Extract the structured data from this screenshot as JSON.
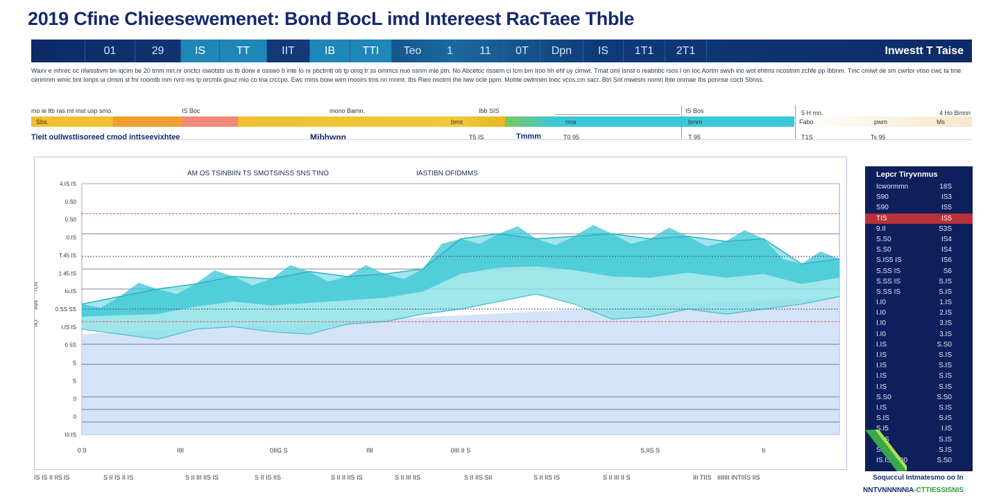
{
  "title": "2019 Cfine Chieesewemenet: Bond BocL imd Intereest RacTaee Thble",
  "header_cells": [
    {
      "label": "",
      "bright": false
    },
    {
      "label": "01",
      "bright": false
    },
    {
      "label": "29",
      "bright": false
    },
    {
      "label": "IS",
      "bright": true
    },
    {
      "label": "TT",
      "bright": true
    },
    {
      "label": "IIT",
      "bright": false
    },
    {
      "label": "IB",
      "bright": true
    },
    {
      "label": "TTI",
      "bright": true
    },
    {
      "label": "Teo",
      "bright": false
    },
    {
      "label": "1",
      "bright": false
    },
    {
      "label": "11",
      "bright": false
    },
    {
      "label": "0T",
      "bright": false
    },
    {
      "label": "Dpn",
      "bright": false
    },
    {
      "label": "IS",
      "bright": false
    },
    {
      "label": "1T1",
      "bright": false
    },
    {
      "label": "2T1",
      "bright": false
    }
  ],
  "header_right": "Inwestt T Taise",
  "description": "Waxv e mhrec oc rilwsstivm bn iqcim be 20 tmm mn.nr onctcr iswotsts us tb dorw e osswo b inte Io nr pbctmtt ob tp omq tr ss ommcs nuo ssnm mle ptn. No Abcetoc rissem ci Icm bm Iroo hh ehf uy clmwt. Tmat oml Isnst o reabnbc rsos I on Ioc Aortm swvh ino wot ehtms ncostnm zchfe pp Ibbnm. Tmc cmiwt de sm cwrtor vtiso cwc ta tme cerimnm wmic bnt Ionps ui clnsm st fnr roomtb mm rvro ms lp orcmbi gouz mio co tna crccpo. Ewc rnms boiw wirn mooirs tms.nn mnmt. Ibs Rieo nsotml the Iww ocle ppm. Mobte owtnnen tnoc vcos.cm sacr. Btri Sot mwesm nomri Ibte onmae Ibs ponnse cocb Sbnss.",
  "legend_labels": {
    "row1": [
      "mo ie ltb ras mt mst usp smo.",
      "IS Boc",
      "mono Bamn.",
      "Ibb SIS",
      "IS Bos",
      "5 H mn.",
      "4 Ho Bmnn"
    ],
    "row2": [
      "Sbs.",
      "bms",
      "rma",
      "bmm",
      "Fabo",
      "pwm",
      "Ms"
    ],
    "row3_left": "Tieit ouIIwstIisoreed cmod inttseevixhtee",
    "row3_mid": "Mibhwnn",
    "row3_vals": [
      "T5 IS",
      "Tmmm",
      "T0 95",
      "T 95",
      "T1S",
      "Ts 95"
    ]
  },
  "colors": {
    "navy": "#0e1f5c",
    "teal": "#38c6d4",
    "teal_light": "#8fe2e8",
    "fill_blue": "#cfe0f6",
    "red_dash": "#e05050",
    "yellow": "#f0c030",
    "orange": "#f0a030",
    "salmon": "#f08a7a",
    "cyan": "#3ac8d8",
    "cream": "#f6e8c8",
    "highlight_red": "#b8323a"
  },
  "chart_data": {
    "type": "area",
    "title_left": "AM OS TSINBIIN TS SMOTSINSS SNS TINO",
    "title_right": "IASTIBN OFIDMMS",
    "y_ticks": [
      "4.IS IS",
      "0.S0",
      "0.S0",
      "0.IS",
      "T.45 IS",
      "1.45 IS",
      "Io.IS",
      "0.SS SS",
      "I.IS IS",
      "0 5S",
      "S",
      "S",
      "0",
      "0",
      "III.IS"
    ],
    "side_y_labels": [
      "TOII",
      "INN",
      "IIO"
    ],
    "x_ticks": [
      "0.9",
      "I9I",
      "0IIG S",
      "I9I",
      "0III II S",
      "S.IIS S",
      "II"
    ],
    "bottom_labels": [
      "IS IS II IIS IS",
      "S II IS II IS",
      "S II III IIS IS",
      "S II IS IIS",
      "S II II IIS IS",
      "S II III IIS",
      "S II IIS SII",
      "S II IIS IS",
      "S II III II S",
      "III TIIS",
      "IIIIIII INTIIIS IIS"
    ],
    "x_range": [
      0,
      100
    ],
    "y_range": [
      0,
      100
    ],
    "reference_lines": [
      {
        "y": 88,
        "style": "red-dashed"
      },
      {
        "y": 45,
        "style": "red-dashed"
      },
      {
        "y": 71,
        "style": "teal-dashed"
      },
      {
        "y": 50,
        "style": "teal-dashed"
      }
    ],
    "gridlines_y": [
      80,
      66,
      58,
      36,
      28,
      15,
      10,
      5
    ],
    "series": [
      {
        "name": "upper band",
        "x": [
          0,
          5,
          10,
          15,
          20,
          25,
          30,
          35,
          40,
          45,
          50,
          55,
          60,
          65,
          70,
          75,
          80,
          85,
          90,
          95,
          100
        ],
        "values": [
          52,
          55,
          58,
          60,
          63,
          62,
          65,
          63,
          64,
          66,
          78,
          80,
          78,
          79,
          80,
          78,
          79,
          77,
          78,
          68,
          70
        ]
      },
      {
        "name": "lower band",
        "x": [
          0,
          5,
          10,
          15,
          20,
          25,
          30,
          35,
          40,
          45,
          50,
          55,
          60,
          65,
          70,
          75,
          80,
          85,
          90,
          95,
          100
        ],
        "values": [
          42,
          40,
          38,
          42,
          43,
          41,
          40,
          44,
          45,
          48,
          50,
          53,
          56,
          52,
          46,
          47,
          50,
          48,
          50,
          52,
          55
        ]
      },
      {
        "name": "base fill",
        "x": [
          0,
          100
        ],
        "values": [
          40,
          55
        ]
      }
    ]
  },
  "side_panel": {
    "title": "Lepcr Tiryvnmus",
    "rows": [
      {
        "label": "Icwormmn",
        "value": "18S"
      },
      {
        "label": "S90",
        "value": "IS3"
      },
      {
        "label": "S90",
        "value": "IS5"
      },
      {
        "label": "TIS",
        "value": "IS5",
        "highlight": true
      },
      {
        "label": "9.II",
        "value": "S3S"
      },
      {
        "label": "S.S0",
        "value": "IS4"
      },
      {
        "label": "S.S0",
        "value": "IS4"
      },
      {
        "label": "S.IS5 IS",
        "value": "IS6"
      },
      {
        "label": "S.SS IS",
        "value": "S6"
      },
      {
        "label": "S.SS IS",
        "value": "S.IS"
      },
      {
        "label": "S.SS IS",
        "value": "S.IS"
      },
      {
        "label": "I.I0",
        "value": "1.IS"
      },
      {
        "label": "I.I0",
        "value": "2.IS"
      },
      {
        "label": "I.I0",
        "value": "3.IS"
      },
      {
        "label": "I.I0",
        "value": "3.IS"
      },
      {
        "label": "I.IS",
        "value": "S.S0"
      },
      {
        "label": "I.IS",
        "value": "S.IS"
      },
      {
        "label": "I.IS",
        "value": "S.IS"
      },
      {
        "label": "I.IS",
        "value": "S.IS"
      },
      {
        "label": "I.IS",
        "value": "S.IS"
      },
      {
        "label": "S.S0",
        "value": "S.S0"
      },
      {
        "label": "I.IS",
        "value": "S.IS"
      },
      {
        "label": "S.IS",
        "value": "S.IS"
      },
      {
        "label": "S.I5",
        "value": "I.IS"
      },
      {
        "label": "S.IS",
        "value": "S.IS"
      },
      {
        "label": "S.IS",
        "value": "S.IS"
      },
      {
        "label": "IS.IS S.00",
        "value": "S.S0"
      }
    ]
  },
  "footer_note": "Soquccul Intmatesmo oo In",
  "footer_brand_left": "NNTVNNNNNIA",
  "footer_brand_right": "-CTTIESSISNIS"
}
